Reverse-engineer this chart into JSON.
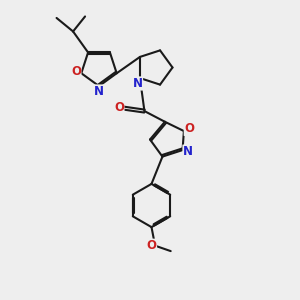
{
  "bg_color": "#eeeeee",
  "bond_color": "#1a1a1a",
  "N_color": "#2222cc",
  "O_color": "#cc2222",
  "lw": 1.5,
  "dbo": 0.055,
  "fs": 8.5,
  "xlim": [
    0,
    10
  ],
  "ylim": [
    0,
    10
  ]
}
